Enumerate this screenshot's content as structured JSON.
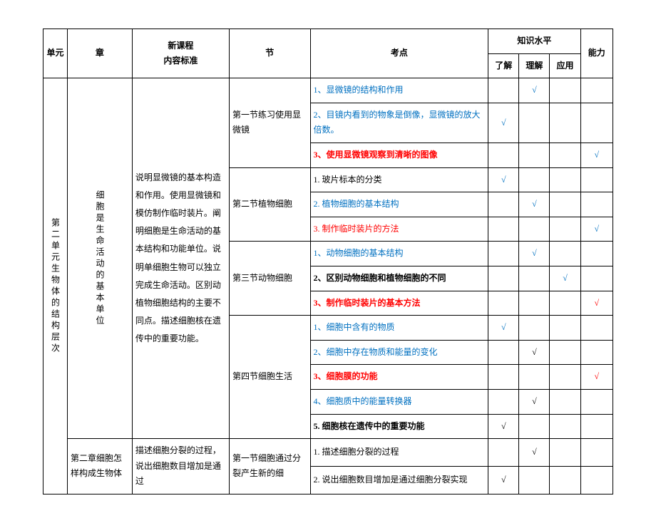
{
  "headers": {
    "unit": "单元",
    "chapter": "章",
    "standard": "新课程\n内容标准",
    "section": "节",
    "point": "考点",
    "knowledge": "知识水平",
    "understand": "了解",
    "comprehend": "理解",
    "apply": "应用",
    "ability": "能力"
  },
  "unit_text": "第二单元生物体的结构层次",
  "chapter1_text": "细胞是生命活动的基本单位",
  "chapter2_text": "第二章细胞怎样构成生物体",
  "standard1": "说明显微镜的基本构造和作用。使用显微镜和模仿制作临时装片。阐明细胞是生命活动的基本结构和功能单位。说明单细胞生物可以独立完成生命活动。区别动植物细胞结构的主要不同点。描述细胞核在遗传中的重要功能。",
  "standard2": "描述细胞分裂的过程，说出细胞数目增加是通过",
  "sections": {
    "s1": "第一节练习使用显微镜",
    "s2": "第二节植物细胞",
    "s3": "第三节动物细胞",
    "s4": "第四节细胞生活",
    "s5": "第一节细胞通过分裂产生新的细"
  },
  "rows": [
    {
      "t": "1、显微镜的结构和作用",
      "color": "c-blue",
      "u": "",
      "c": "√",
      "a": "",
      "ab": "",
      "cc": "blue"
    },
    {
      "t": "2、目镜内看到的物象是倒像，显微镜的放大倍数。",
      "color": "c-blue",
      "u": "√",
      "c": "",
      "a": "",
      "ab": "",
      "cc": "blue"
    },
    {
      "t": "3、使用显微镜观察到清晰的图像",
      "color": "c-red",
      "bold": true,
      "u": "",
      "c": "",
      "a": "",
      "ab": "√",
      "cc": "blue",
      "abc": "blue"
    },
    {
      "t": "1. 玻片标本的分类",
      "color": "c-black",
      "u": "√",
      "c": "",
      "a": "",
      "ab": "",
      "cc": "blue"
    },
    {
      "t": "2. 植物细胞的基本结构",
      "color": "c-blue",
      "u": "",
      "c": "√",
      "a": "",
      "ab": "",
      "cc": "blue"
    },
    {
      "t": "3. 制作临时装片的方法",
      "color": "c-red",
      "u": "",
      "c": "",
      "a": "",
      "ab": "√",
      "cc": "blue",
      "abc": "blue"
    },
    {
      "t": "1、动物细胞的基本结构",
      "color": "c-blue",
      "u": "",
      "c": "√",
      "a": "",
      "ab": "",
      "cc": "blue"
    },
    {
      "t": "2、区别动物细胞和植物细胞的不同",
      "color": "c-black",
      "bold": true,
      "u": "",
      "c": "",
      "a": "√",
      "ab": "",
      "cc": "blue"
    },
    {
      "t": "3、制作临时装片的基本方法",
      "color": "c-red",
      "bold": true,
      "u": "",
      "c": "",
      "a": "",
      "ab": "√",
      "cc": "red",
      "abc": "red"
    },
    {
      "t": "1、细胞中含有的物质",
      "color": "c-blue",
      "u": "√",
      "c": "",
      "a": "",
      "ab": "",
      "cc": "blue"
    },
    {
      "t": "2、细胞中存在物质和能量的变化",
      "color": "c-blue",
      "u": "",
      "c": "√",
      "a": "",
      "ab": "",
      "cc": "black"
    },
    {
      "t": "3、细胞膜的功能",
      "color": "c-red",
      "bold": true,
      "u": "",
      "c": "",
      "a": "",
      "ab": "√",
      "cc": "red",
      "abc": "red"
    },
    {
      "t": "4、细胞质中的能量转换器",
      "color": "c-blue",
      "u": "",
      "c": "√",
      "a": "",
      "ab": "",
      "cc": "black"
    },
    {
      "t": "5. 细胞核在遗传中的重要功能",
      "color": "c-black",
      "bold": true,
      "u": "√",
      "c": "",
      "a": "",
      "ab": "",
      "cc": "black"
    },
    {
      "t": "1. 描述细胞分裂的过程",
      "color": "c-black",
      "u": "",
      "c": "√",
      "a": "",
      "ab": "",
      "cc": "black"
    },
    {
      "t": "2. 说出细胞数目增加是通过细胞分裂实现",
      "color": "c-black",
      "u": "√",
      "c": "",
      "a": "",
      "ab": "",
      "cc": "black"
    }
  ]
}
